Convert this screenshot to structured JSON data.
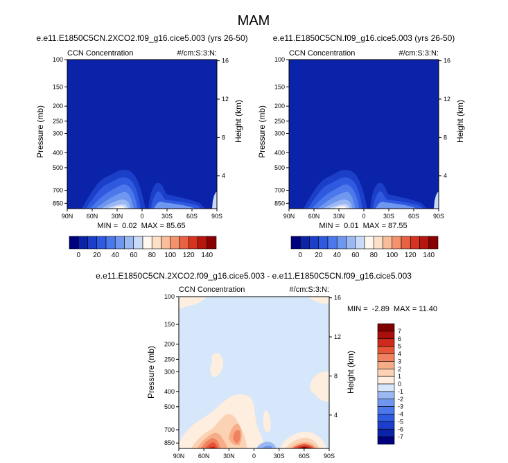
{
  "page": {
    "title": "MAM"
  },
  "colors": {
    "ccn_scale": [
      "#00007f",
      "#0a23a8",
      "#1c3fc9",
      "#2f5ae0",
      "#4b78ea",
      "#6f97ef",
      "#9bb8f3",
      "#c9dbf8",
      "#fff6ee",
      "#fde0c8",
      "#f9bd9b",
      "#f3926d",
      "#e86142",
      "#d63421",
      "#b5170f",
      "#8a0000"
    ],
    "diff_scale": [
      "#00007f",
      "#0a23a8",
      "#1c3fc9",
      "#2f5ae0",
      "#4b78ea",
      "#6f97ef",
      "#9bb8f3",
      "#d6e6fb",
      "#fdeee0",
      "#fbd2b3",
      "#f7ad88",
      "#f18260",
      "#e4553a",
      "#cc2a1a",
      "#a80e0c",
      "#7f0000"
    ]
  },
  "chart_data": [
    {
      "id": "ctrl_2xco2",
      "type": "contour",
      "title": "e.e11.E1850C5CN.2XCO2.f09_g16.cice5.003 (yrs 26-50)",
      "left_label": "CCN Concentration",
      "right_label": "#/cm:S:3:N:",
      "ylabel": "Pressure (mb)",
      "ylabel_right": "Height (km)",
      "x_ticks": [
        "90N",
        "60N",
        "30N",
        "0",
        "30S",
        "60S",
        "90S"
      ],
      "y_ticks": [
        "100",
        "150",
        "200",
        "250",
        "300",
        "400",
        "500",
        "700",
        "850"
      ],
      "y_ticks_right": [
        "16",
        "12",
        "8",
        "4"
      ],
      "stats": "MIN =  0.02  MAX = 85.65",
      "colorbar_labels": [
        "0",
        "20",
        "40",
        "60",
        "80",
        "100",
        "120",
        "140"
      ]
    },
    {
      "id": "ctrl",
      "type": "contour",
      "title": "e.e11.E1850C5CN.f09_g16.cice5.003 (yrs 26-50)",
      "left_label": "CCN Concentration",
      "right_label": "#/cm:S:3:N:",
      "ylabel": "Pressure (mb)",
      "ylabel_right": "Height (km)",
      "x_ticks": [
        "90N",
        "60N",
        "30N",
        "0",
        "30S",
        "60S",
        "90S"
      ],
      "y_ticks": [
        "100",
        "150",
        "200",
        "250",
        "300",
        "400",
        "500",
        "700",
        "850"
      ],
      "y_ticks_right": [
        "16",
        "12",
        "8",
        "4"
      ],
      "stats": "MIN =  0.01  MAX = 87.55",
      "colorbar_labels": [
        "0",
        "20",
        "40",
        "60",
        "80",
        "100",
        "120",
        "140"
      ]
    },
    {
      "id": "diff",
      "type": "contour",
      "title": "e.e11.E1850C5CN.2XCO2.f09_g16.cice5.003 - e.e11.E1850C5CN.f09_g16.cice5.003",
      "left_label": "CCN Concentration",
      "right_label": "#/cm:S:3:N:",
      "ylabel": "Pressure (mb)",
      "ylabel_right": "Height (km)",
      "x_ticks": [
        "90N",
        "60N",
        "30N",
        "0",
        "30S",
        "60S",
        "90S"
      ],
      "y_ticks": [
        "100",
        "150",
        "200",
        "250",
        "300",
        "400",
        "500",
        "700",
        "850"
      ],
      "y_ticks_right": [
        "16",
        "12",
        "8",
        "4"
      ],
      "stats": "MIN =  -2.89  MAX = 11.40",
      "colorbar_labels": [
        "7",
        "6",
        "5",
        "4",
        "3",
        "2",
        "1",
        "0",
        "-1",
        "-2",
        "-3",
        "-4",
        "-5",
        "-6",
        "-7"
      ]
    }
  ]
}
